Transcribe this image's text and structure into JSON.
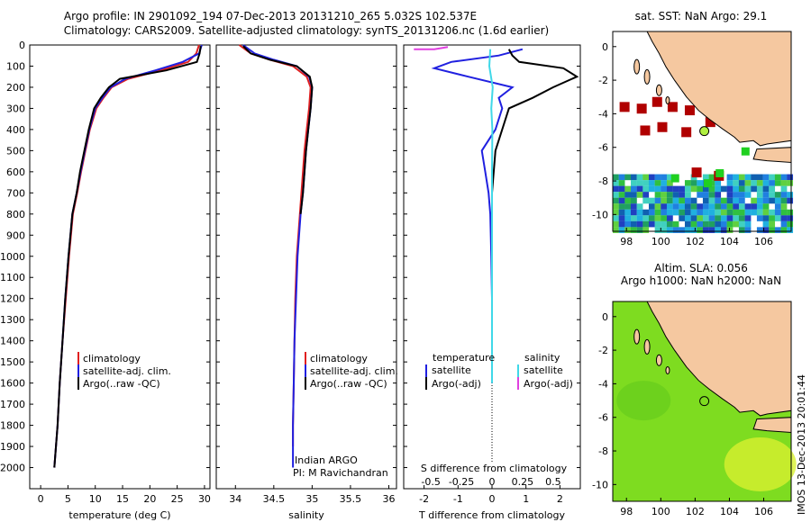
{
  "title": {
    "line1": "Argo profile: IN 2901092_194 07-Dec-2013 20131210_265 5.032S 102.537E",
    "line2": "Climatology: CARS2009. Satellite-adjusted climatology: synTS_20131206.nc (1.6d earlier)"
  },
  "colors": {
    "climatology": "#e02020",
    "satellite_adj": "#2020e0",
    "argo": "#000000",
    "salinity_sat": "#40d8e8",
    "salinity_argo": "#e040e0",
    "land": "#f5c8a0",
    "sst_red": "#b00000",
    "sst_green": "#20d020",
    "sla_green": "#7edc20",
    "sla_yellow": "#d8f030"
  },
  "depth_axis": {
    "ticks": [
      "0",
      "100",
      "200",
      "300",
      "400",
      "500",
      "600",
      "700",
      "800",
      "900",
      "1000",
      "1100",
      "1200",
      "1300",
      "1400",
      "1500",
      "1600",
      "1700",
      "1800",
      "1900",
      "2000"
    ]
  },
  "panels": {
    "temperature": {
      "xlabel": "temperature (deg C)",
      "xticks": [
        "0",
        "5",
        "10",
        "15",
        "20",
        "25",
        "30"
      ],
      "legend": [
        "climatology",
        "satellite-adj. clim.",
        "Argo(..raw -QC)"
      ]
    },
    "salinity": {
      "xlabel": "salinity",
      "xticks": [
        "34",
        "34.5",
        "35",
        "35.5",
        "36"
      ],
      "legend": [
        "climatology",
        "satellite-adj. clim.",
        "Argo(..raw -QC)"
      ],
      "note1": "Indian ARGO",
      "note2": "PI: M Ravichandran"
    },
    "difference": {
      "top_xticks": [
        "-0.5",
        "-0.25",
        "0",
        "0.25",
        "0.5"
      ],
      "bottom_xticks": [
        "-2",
        "-1",
        "0",
        "1",
        "2"
      ],
      "top_label": "S difference from climatology",
      "xlabel": "T difference from climatology",
      "legend_temp_title": "temperature",
      "legend_sal_title": "salinity",
      "legend_temp": [
        "satellite",
        "Argo(-adj)"
      ],
      "legend_sal": [
        "satellite",
        "Argo(-adj)"
      ]
    }
  },
  "maps": {
    "sst": {
      "title": "sat. SST: NaN Argo: 29.1"
    },
    "sla": {
      "title1": "Altim. SLA: 0.056",
      "title2": "Argo h1000: NaN h2000: NaN"
    },
    "xticks": [
      "98",
      "100",
      "102",
      "104",
      "106"
    ],
    "sst_yticks": [
      "0",
      "-2",
      "-4",
      "-6",
      "-8",
      "-10"
    ],
    "sla_yticks": [
      "0",
      "-2",
      "-4",
      "-6",
      "-8",
      "-10"
    ]
  },
  "stamp": "IMOS 13-Dec-2013 20:01:44",
  "chart_data": [
    {
      "type": "line",
      "title": "",
      "xlabel": "temperature (deg C)",
      "ylabel": "",
      "xlim": [
        -2,
        31
      ],
      "ylim": [
        2100,
        0
      ],
      "series": [
        {
          "name": "climatology",
          "x": [
            29,
            28.5,
            27,
            22,
            16,
            13,
            11.5,
            10.2,
            9,
            8.2,
            7.4,
            6.7,
            5.9,
            5.2,
            4.6,
            4,
            3.5,
            3.1,
            2.8,
            2.5
          ],
          "y": [
            0,
            40,
            80,
            120,
            160,
            200,
            250,
            300,
            400,
            500,
            600,
            700,
            800,
            1000,
            1200,
            1400,
            1600,
            1800,
            1900,
            2000
          ]
        },
        {
          "name": "satellite-adj. clim.",
          "x": [
            29.5,
            29,
            26,
            21,
            15.5,
            12.8,
            11.3,
            10,
            8.9,
            8.1,
            7.3,
            6.6,
            5.8,
            5.1,
            4.5,
            4,
            3.5,
            3.1,
            2.8,
            2.5
          ],
          "y": [
            0,
            40,
            80,
            120,
            160,
            200,
            250,
            300,
            400,
            500,
            600,
            700,
            800,
            1000,
            1200,
            1400,
            1600,
            1800,
            1900,
            2000
          ]
        },
        {
          "name": "Argo(..raw -QC)",
          "x": [
            29.3,
            29.1,
            28.6,
            23,
            14.5,
            12.5,
            11,
            9.8,
            8.8,
            8,
            7.2,
            6.6,
            5.8,
            5.1,
            4.5,
            4,
            3.5,
            3.1,
            2.8,
            2.5
          ],
          "y": [
            5,
            40,
            80,
            120,
            160,
            200,
            250,
            300,
            400,
            500,
            600,
            700,
            800,
            1000,
            1200,
            1400,
            1600,
            1800,
            1900,
            2000
          ]
        }
      ]
    },
    {
      "type": "line",
      "title": "",
      "xlabel": "salinity",
      "ylabel": "",
      "xlim": [
        33.75,
        36.1
      ],
      "ylim": [
        2100,
        0
      ],
      "series": [
        {
          "name": "climatology",
          "x": [
            34.05,
            34.2,
            34.45,
            34.75,
            34.93,
            34.98,
            34.96,
            34.93,
            34.9,
            34.88,
            34.86,
            34.84,
            34.8,
            34.78,
            34.77,
            34.76,
            34.75,
            34.75
          ],
          "y": [
            0,
            40,
            70,
            100,
            150,
            200,
            300,
            400,
            500,
            600,
            700,
            800,
            1000,
            1200,
            1400,
            1600,
            1800,
            1900
          ]
        },
        {
          "name": "satellite-adj. clim.",
          "x": [
            34.1,
            34.25,
            34.5,
            34.8,
            34.96,
            35,
            34.98,
            34.95,
            34.92,
            34.9,
            34.88,
            34.85,
            34.81,
            34.79,
            34.77,
            34.76,
            34.75,
            34.75
          ],
          "y": [
            0,
            40,
            70,
            100,
            150,
            200,
            300,
            400,
            500,
            600,
            700,
            800,
            1000,
            1200,
            1400,
            1600,
            1800,
            2000
          ]
        },
        {
          "name": "Argo(..raw -QC)",
          "x": [
            34.1,
            34.2,
            34.45,
            34.8,
            34.97,
            35,
            34.98,
            34.95,
            34.92,
            34.9,
            34.88,
            34.85
          ],
          "y": [
            5,
            40,
            70,
            100,
            150,
            200,
            300,
            400,
            500,
            600,
            700,
            800
          ]
        }
      ]
    },
    {
      "type": "line",
      "title": "",
      "xlabel": "T difference from climatology",
      "ylabel": "",
      "xlim": [
        -2.6,
        2.6
      ],
      "ylim": [
        2100,
        0
      ],
      "series": [
        {
          "name": "temperature satellite",
          "x": [
            0.9,
            0.2,
            -1.2,
            -1.7,
            -0.7,
            0.6,
            0.2,
            0.3,
            0.1,
            -0.3,
            -0.2,
            -0.1,
            -0.05,
            -0.02,
            0,
            0,
            0
          ],
          "y": [
            20,
            50,
            80,
            110,
            150,
            200,
            250,
            300,
            400,
            500,
            600,
            700,
            800,
            1000,
            1200,
            1400,
            1600
          ]
        },
        {
          "name": "temperature Argo(-adj)",
          "x": [
            0.5,
            0.6,
            0.8,
            2.1,
            2.5,
            1.8,
            1.2,
            0.5,
            0.3,
            0.1,
            0.05,
            0,
            0
          ],
          "y": [
            20,
            50,
            80,
            110,
            150,
            200,
            250,
            300,
            400,
            500,
            600,
            700,
            800
          ]
        },
        {
          "name": "salinity satellite",
          "x": [
            -0.05,
            -0.08,
            0.02,
            -0.02,
            0.01,
            0,
            0,
            0,
            0,
            0,
            0
          ],
          "y": [
            20,
            100,
            200,
            300,
            400,
            600,
            800,
            1000,
            1200,
            1400,
            1600
          ]
        },
        {
          "name": "salinity Argo(-adj)",
          "x": [
            -2.3,
            -1.7,
            -1.3
          ],
          "y": [
            20,
            20,
            10
          ]
        }
      ]
    }
  ]
}
